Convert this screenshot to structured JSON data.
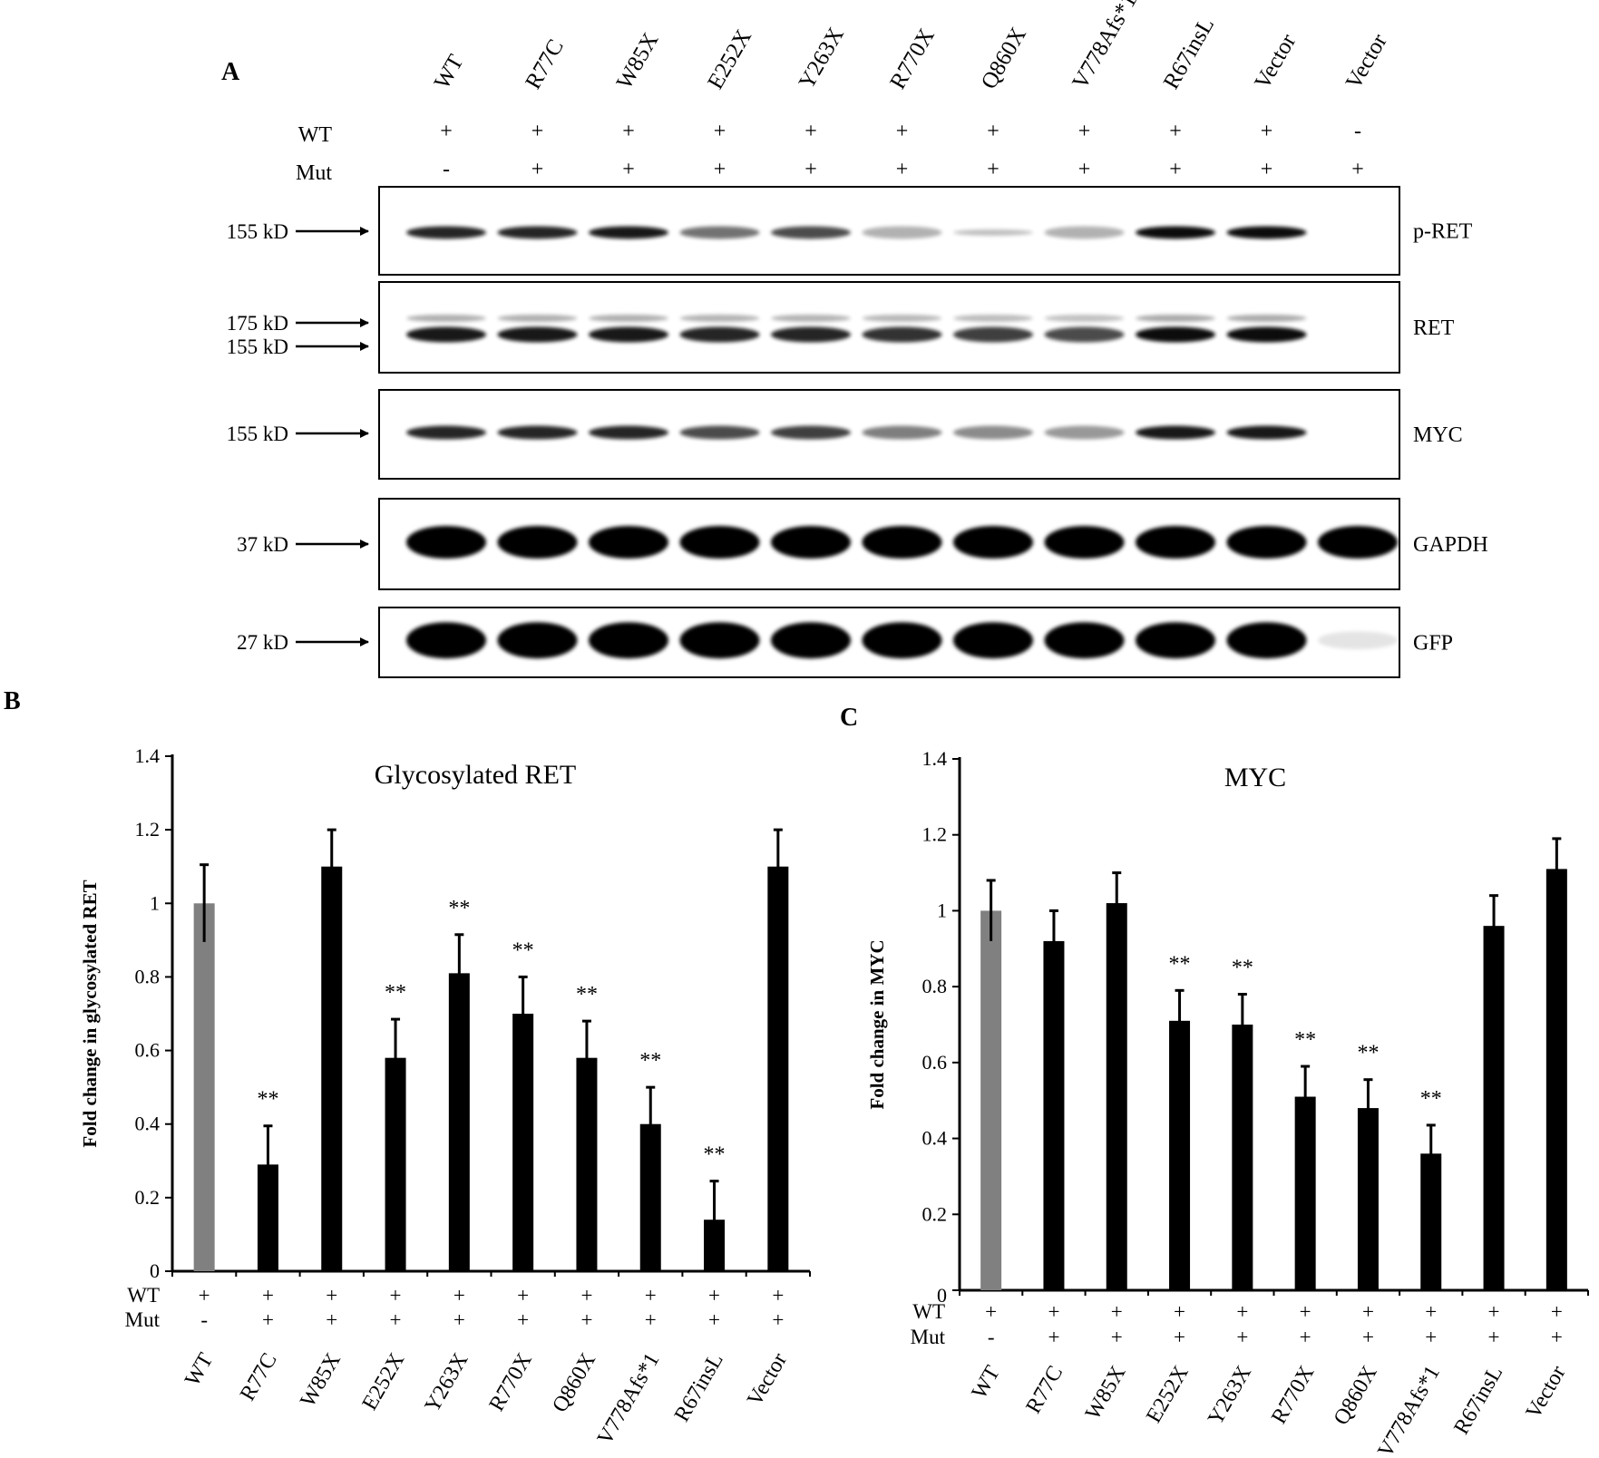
{
  "panel_letters": {
    "a": "A",
    "b": "B",
    "c": "C"
  },
  "blot": {
    "lanes": [
      "WT",
      "R77C",
      "W85X",
      "E252X",
      "Y263X",
      "R770X",
      "Q860X",
      "V778Afs*1",
      "R67insL",
      "Vector",
      "Vector"
    ],
    "wt_row_label": "WT",
    "mut_row_label": "Mut",
    "wt_signs": [
      "+",
      "+",
      "+",
      "+",
      "+",
      "+",
      "+",
      "+",
      "+",
      "+",
      "-"
    ],
    "mut_signs": [
      "-",
      "+",
      "+",
      "+",
      "+",
      "+",
      "+",
      "+",
      "+",
      "+",
      "+"
    ],
    "rows": [
      {
        "name": "p-RET",
        "markers": [
          "155 kD"
        ],
        "intensity": [
          0.85,
          0.85,
          0.9,
          0.55,
          0.7,
          0.3,
          0.25,
          0.3,
          0.95,
          0.95,
          0.0
        ]
      },
      {
        "name": "RET",
        "markers": [
          "175 kD",
          "155 kD"
        ],
        "intensity": [
          0.9,
          0.9,
          0.9,
          0.85,
          0.85,
          0.8,
          0.75,
          0.7,
          0.95,
          0.95,
          0.0
        ]
      },
      {
        "name": "MYC",
        "markers": [
          "155 kD"
        ],
        "intensity": [
          0.85,
          0.85,
          0.85,
          0.7,
          0.75,
          0.5,
          0.45,
          0.4,
          0.9,
          0.9,
          0.0
        ]
      },
      {
        "name": "GAPDH",
        "markers": [
          "37 kD"
        ],
        "intensity": [
          1,
          1,
          1,
          1,
          1,
          1,
          1,
          1,
          1,
          1,
          1
        ]
      },
      {
        "name": "GFP",
        "markers": [
          "27 kD"
        ],
        "intensity": [
          1,
          1,
          1,
          1,
          1,
          1,
          1,
          1,
          1,
          1,
          0.1
        ]
      }
    ]
  },
  "chart_data": [
    {
      "type": "bar",
      "title": "Glycosylated RET",
      "ylabel": "Fold change in glycosylated RET",
      "categories": [
        "WT",
        "R77C",
        "W85X",
        "E252X",
        "Y263X",
        "R770X",
        "Q860X",
        "V778Afs*1",
        "R67insL",
        "Vector"
      ],
      "values": [
        1.0,
        0.29,
        1.1,
        0.58,
        0.81,
        0.7,
        0.58,
        0.4,
        0.14,
        1.1
      ],
      "errors": [
        0.105,
        0.105,
        0.1,
        0.105,
        0.105,
        0.1,
        0.1,
        0.1,
        0.105,
        0.1
      ],
      "significance": [
        "",
        "**",
        "",
        "**",
        "**",
        "**",
        "**",
        "**",
        "**",
        ""
      ],
      "bar_colors": [
        "#808080",
        "#000000",
        "#000000",
        "#000000",
        "#000000",
        "#000000",
        "#000000",
        "#000000",
        "#000000",
        "#000000"
      ],
      "ylim": [
        0,
        1.4
      ],
      "yticks": [
        "0",
        "0.2",
        "0.4",
        "0.6",
        "0.8",
        "1",
        "1.2",
        "1.4"
      ],
      "wt_row_label": "WT",
      "mut_row_label": "Mut",
      "wt_signs": [
        "+",
        "+",
        "+",
        "+",
        "+",
        "+",
        "+",
        "+",
        "+",
        "+"
      ],
      "mut_signs": [
        "-",
        "+",
        "+",
        "+",
        "+",
        "+",
        "+",
        "+",
        "+",
        "+"
      ]
    },
    {
      "type": "bar",
      "title": "MYC",
      "ylabel": "Fold change in MYC",
      "categories": [
        "WT",
        "R77C",
        "W85X",
        "E252X",
        "Y263X",
        "R770X",
        "Q860X",
        "V778Afs*1",
        "R67insL",
        "Vector"
      ],
      "values": [
        1.0,
        0.92,
        1.02,
        0.71,
        0.7,
        0.51,
        0.48,
        0.36,
        0.96,
        1.11
      ],
      "errors": [
        0.08,
        0.08,
        0.08,
        0.08,
        0.08,
        0.08,
        0.075,
        0.075,
        0.08,
        0.08
      ],
      "significance": [
        "",
        "",
        "",
        "**",
        "**",
        "**",
        "**",
        "**",
        "",
        ""
      ],
      "bar_colors": [
        "#808080",
        "#000000",
        "#000000",
        "#000000",
        "#000000",
        "#000000",
        "#000000",
        "#000000",
        "#000000",
        "#000000"
      ],
      "ylim": [
        0,
        1.4
      ],
      "yticks": [
        "0",
        "0.2",
        "0.4",
        "0.6",
        "0.8",
        "1",
        "1.2",
        "1.4"
      ],
      "wt_row_label": "WT",
      "mut_row_label": "Mut",
      "wt_signs": [
        "+",
        "+",
        "+",
        "+",
        "+",
        "+",
        "+",
        "+",
        "+",
        "+"
      ],
      "mut_signs": [
        "-",
        "+",
        "+",
        "+",
        "+",
        "+",
        "+",
        "+",
        "+",
        "+"
      ]
    }
  ]
}
